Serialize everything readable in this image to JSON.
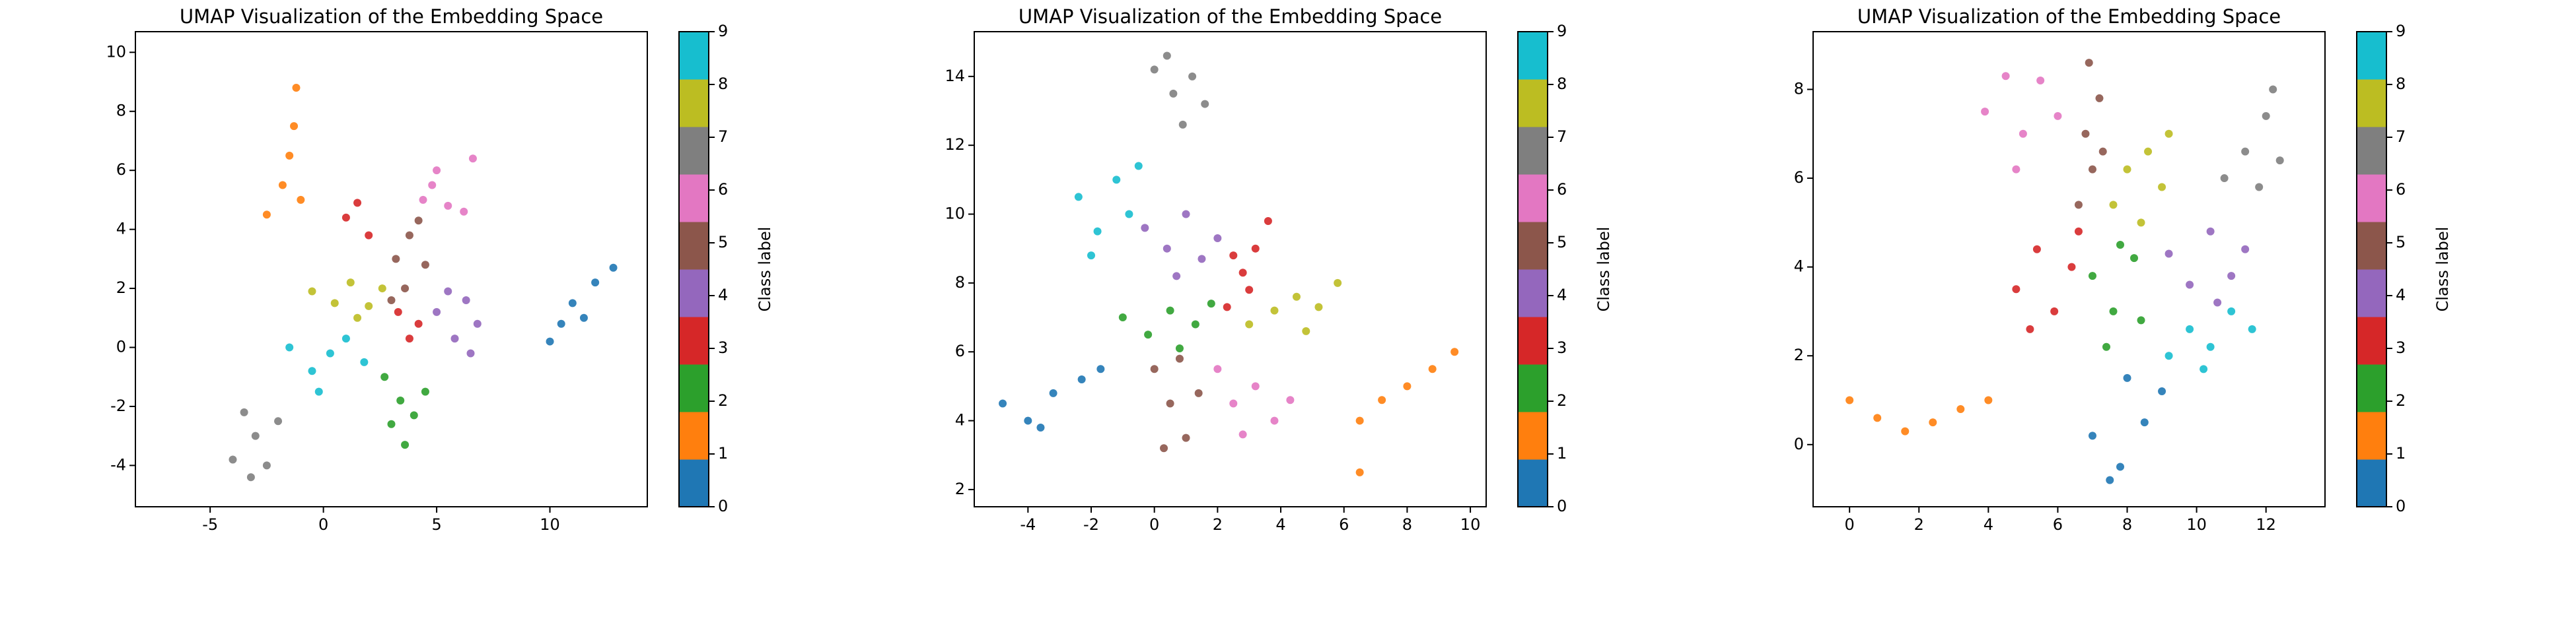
{
  "chart_data": [
    {
      "type": "scatter",
      "title": "UMAP Visualization of the Embedding Space",
      "colorbar_label": "Class label",
      "xlim": [
        -8.3,
        14.3
      ],
      "ylim": [
        -5.4,
        10.7
      ],
      "xticks": [
        -5,
        0,
        5,
        10
      ],
      "yticks": [
        -4,
        -2,
        0,
        2,
        4,
        6,
        8,
        10
      ],
      "x": [
        10,
        11,
        12,
        12.8,
        10.5,
        11.5,
        -2.5,
        -1.8,
        -1.5,
        -1.3,
        -1.2,
        -1.0,
        2.7,
        3.4,
        4.0,
        3.6,
        4.5,
        3.0,
        1.0,
        2.0,
        1.5,
        3.3,
        3.8,
        4.2,
        5.0,
        5.8,
        6.3,
        6.8,
        5.5,
        6.5,
        3.2,
        3.8,
        4.5,
        3.6,
        4.2,
        3.0,
        4.4,
        5.0,
        5.5,
        6.2,
        4.8,
        6.6,
        -4.0,
        -3.0,
        -2.0,
        -3.5,
        -2.5,
        -3.2,
        -0.5,
        0.5,
        1.2,
        2.0,
        2.6,
        1.5,
        -1.5,
        -0.5,
        0.3,
        1.0,
        -0.2,
        1.8
      ],
      "y": [
        0.2,
        1.5,
        2.2,
        2.7,
        0.8,
        1.0,
        4.5,
        5.5,
        6.5,
        7.5,
        8.8,
        5.0,
        -1.0,
        -1.8,
        -2.3,
        -3.3,
        -1.5,
        -2.6,
        4.4,
        3.8,
        4.9,
        1.2,
        0.3,
        0.8,
        1.2,
        0.3,
        1.6,
        0.8,
        1.9,
        -0.2,
        3.0,
        3.8,
        2.8,
        2.0,
        4.3,
        1.6,
        5.0,
        6.0,
        4.8,
        4.6,
        5.5,
        6.4,
        -3.8,
        -3.0,
        -2.5,
        -2.2,
        -4.0,
        -4.4,
        1.9,
        1.5,
        2.2,
        1.4,
        2.0,
        1.0,
        0.0,
        -0.8,
        -0.2,
        0.3,
        -1.5,
        -0.5
      ],
      "c": [
        0,
        0,
        0,
        0,
        0,
        0,
        1,
        1,
        1,
        1,
        1,
        1,
        2,
        2,
        2,
        2,
        2,
        2,
        3,
        3,
        3,
        3,
        3,
        3,
        4,
        4,
        4,
        4,
        4,
        4,
        5,
        5,
        5,
        5,
        5,
        5,
        6,
        6,
        6,
        6,
        6,
        6,
        7,
        7,
        7,
        7,
        7,
        7,
        8,
        8,
        8,
        8,
        8,
        8,
        9,
        9,
        9,
        9,
        9,
        9
      ],
      "colors": [
        "#1f77b4",
        "#ff7f0e",
        "#2ca02c",
        "#d62728",
        "#9467bd",
        "#8c564b",
        "#e377c2",
        "#7f7f7f",
        "#bcbd22",
        "#17becf"
      ],
      "cbar_lim": [
        0,
        9
      ],
      "cbar_ticks": [
        0,
        1,
        2,
        3,
        4,
        5,
        6,
        7,
        8,
        9
      ]
    },
    {
      "type": "scatter",
      "title": "UMAP Visualization of the Embedding Space",
      "colorbar_label": "Class label",
      "xlim": [
        -5.7,
        10.5
      ],
      "ylim": [
        1.5,
        15.3
      ],
      "xticks": [
        -4,
        -2,
        0,
        2,
        4,
        6,
        8,
        10
      ],
      "yticks": [
        2,
        4,
        6,
        8,
        10,
        12,
        14
      ],
      "x": [
        -4.8,
        -4.0,
        -3.2,
        -2.3,
        -1.7,
        -3.6,
        6.5,
        6.5,
        7.2,
        8.0,
        8.8,
        9.5,
        -1.0,
        -0.2,
        0.5,
        1.3,
        0.8,
        1.8,
        2.3,
        2.8,
        3.2,
        3.6,
        3.0,
        2.5,
        -0.3,
        0.4,
        1.0,
        1.5,
        2.0,
        0.7,
        0.0,
        0.5,
        1.0,
        0.8,
        1.4,
        0.3,
        2.0,
        2.5,
        3.2,
        3.8,
        2.8,
        4.3,
        0.0,
        0.6,
        1.2,
        0.9,
        1.6,
        0.4,
        3.0,
        3.8,
        4.5,
        5.2,
        5.8,
        4.8,
        -2.4,
        -1.8,
        -1.2,
        -0.8,
        -2.0,
        -0.5
      ],
      "y": [
        4.5,
        4.0,
        4.8,
        5.2,
        5.5,
        3.8,
        2.5,
        4.0,
        4.6,
        5.0,
        5.5,
        6.0,
        7.0,
        6.5,
        7.2,
        6.8,
        6.1,
        7.4,
        7.3,
        8.3,
        9.0,
        9.8,
        7.8,
        8.8,
        9.6,
        9.0,
        10.0,
        8.7,
        9.3,
        8.2,
        5.5,
        4.5,
        3.5,
        5.8,
        4.8,
        3.2,
        5.5,
        4.5,
        5.0,
        4.0,
        3.6,
        4.6,
        14.2,
        13.5,
        14.0,
        12.6,
        13.2,
        14.6,
        6.8,
        7.2,
        7.6,
        7.3,
        8.0,
        6.6,
        10.5,
        9.5,
        11.0,
        10.0,
        8.8,
        11.4
      ],
      "c": [
        0,
        0,
        0,
        0,
        0,
        0,
        1,
        1,
        1,
        1,
        1,
        1,
        2,
        2,
        2,
        2,
        2,
        2,
        3,
        3,
        3,
        3,
        3,
        3,
        4,
        4,
        4,
        4,
        4,
        4,
        5,
        5,
        5,
        5,
        5,
        5,
        6,
        6,
        6,
        6,
        6,
        6,
        7,
        7,
        7,
        7,
        7,
        7,
        8,
        8,
        8,
        8,
        8,
        8,
        9,
        9,
        9,
        9,
        9,
        9
      ],
      "colors": [
        "#1f77b4",
        "#ff7f0e",
        "#2ca02c",
        "#d62728",
        "#9467bd",
        "#8c564b",
        "#e377c2",
        "#7f7f7f",
        "#bcbd22",
        "#17becf"
      ],
      "cbar_lim": [
        0,
        9
      ],
      "cbar_ticks": [
        0,
        1,
        2,
        3,
        4,
        5,
        6,
        7,
        8,
        9
      ]
    },
    {
      "type": "scatter",
      "title": "UMAP Visualization of the Embedding Space",
      "colorbar_label": "Class label",
      "xlim": [
        -1.05,
        13.7
      ],
      "ylim": [
        -1.4,
        9.3
      ],
      "xticks": [
        0,
        2,
        4,
        6,
        8,
        10,
        12
      ],
      "yticks": [
        0,
        2,
        4,
        6,
        8
      ],
      "x": [
        7.0,
        7.8,
        8.5,
        9.0,
        8.0,
        7.5,
        0.0,
        0.8,
        1.6,
        2.4,
        3.2,
        4.0,
        7.0,
        7.6,
        8.2,
        7.4,
        8.4,
        7.8,
        4.8,
        5.4,
        5.9,
        6.4,
        5.2,
        6.6,
        9.2,
        9.8,
        10.4,
        11.0,
        10.6,
        11.4,
        6.6,
        7.0,
        6.8,
        7.2,
        6.9,
        7.3,
        3.9,
        4.5,
        5.0,
        5.5,
        4.8,
        6.0,
        10.8,
        11.4,
        12.0,
        12.4,
        11.8,
        12.2,
        7.6,
        8.0,
        8.6,
        9.0,
        8.4,
        9.2,
        9.2,
        9.8,
        10.4,
        11.0,
        11.6,
        10.2
      ],
      "y": [
        0.2,
        -0.5,
        0.5,
        1.2,
        1.5,
        -0.8,
        1.0,
        0.6,
        0.3,
        0.5,
        0.8,
        1.0,
        3.8,
        3.0,
        4.2,
        2.2,
        2.8,
        4.5,
        3.5,
        4.4,
        3.0,
        4.0,
        2.6,
        4.8,
        4.3,
        3.6,
        4.8,
        3.8,
        3.2,
        4.4,
        5.4,
        6.2,
        7.0,
        7.8,
        8.6,
        6.6,
        7.5,
        8.3,
        7.0,
        8.2,
        6.2,
        7.4,
        6.0,
        6.6,
        7.4,
        6.4,
        5.8,
        8.0,
        5.4,
        6.2,
        6.6,
        5.8,
        5.0,
        7.0,
        2.0,
        2.6,
        2.2,
        3.0,
        2.6,
        1.7
      ],
      "c": [
        0,
        0,
        0,
        0,
        0,
        0,
        1,
        1,
        1,
        1,
        1,
        1,
        2,
        2,
        2,
        2,
        2,
        2,
        3,
        3,
        3,
        3,
        3,
        3,
        4,
        4,
        4,
        4,
        4,
        4,
        5,
        5,
        5,
        5,
        5,
        5,
        6,
        6,
        6,
        6,
        6,
        6,
        7,
        7,
        7,
        7,
        7,
        7,
        8,
        8,
        8,
        8,
        8,
        8,
        9,
        9,
        9,
        9,
        9,
        9
      ],
      "colors": [
        "#1f77b4",
        "#ff7f0e",
        "#2ca02c",
        "#d62728",
        "#9467bd",
        "#8c564b",
        "#e377c2",
        "#7f7f7f",
        "#bcbd22",
        "#17becf"
      ],
      "cbar_lim": [
        0,
        9
      ],
      "cbar_ticks": [
        0,
        1,
        2,
        3,
        4,
        5,
        6,
        7,
        8,
        9
      ]
    }
  ]
}
